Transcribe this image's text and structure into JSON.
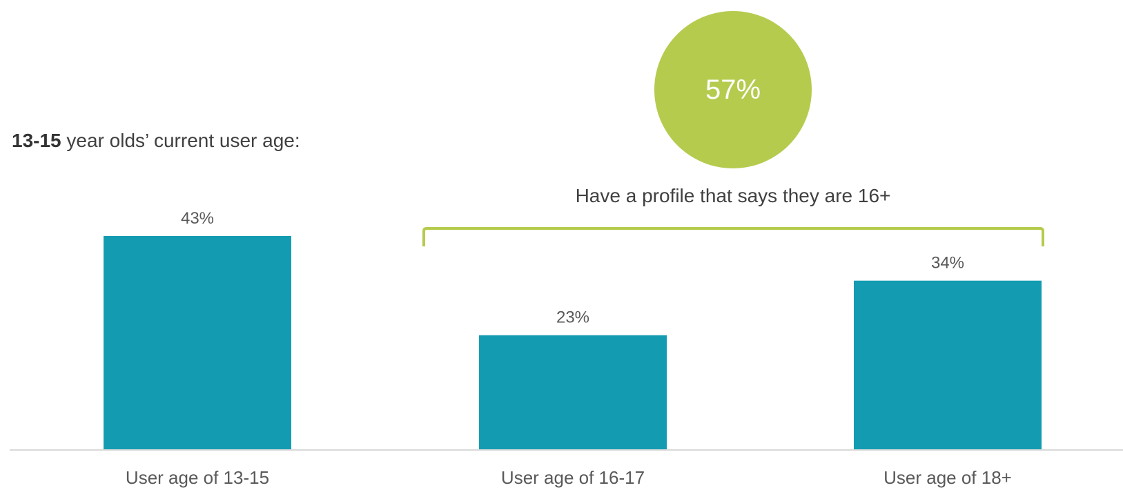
{
  "subtitle": {
    "bold": "13-15",
    "rest": " year olds’ current user age:"
  },
  "callout": {
    "value_label": "57%",
    "caption": "Have a profile that says they are 16+"
  },
  "colors": {
    "bar": "#139CB1",
    "accent": "#B5CB4E",
    "axis": "#D9D9D9",
    "label_text": "#595959",
    "callout_text": "#FFFFFF"
  },
  "chart_data": {
    "type": "bar",
    "categories": [
      "User age of 13-15",
      "User age of 16-17",
      "User age of 18+"
    ],
    "values": [
      43,
      23,
      34
    ],
    "data_labels": [
      "43%",
      "23%",
      "34%"
    ],
    "unit": "%",
    "title": "",
    "xlabel": "",
    "ylabel": "",
    "ylim": [
      0,
      43
    ],
    "grid": false,
    "legend": "none"
  }
}
